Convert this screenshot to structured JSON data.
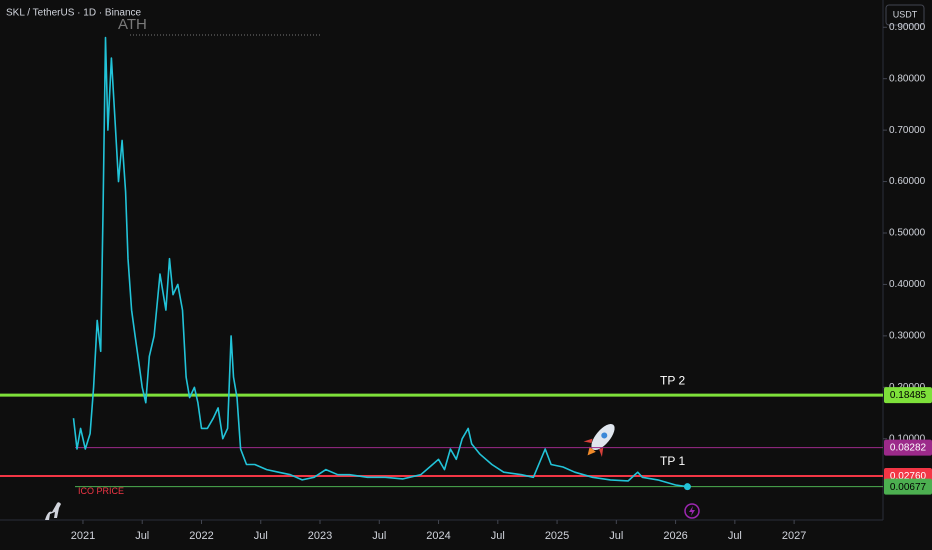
{
  "chart_data": {
    "type": "line",
    "title": "SKL / TetherUS · 1D · Binance",
    "currency": "USDT",
    "annotation": "ATH",
    "color": "#22c3d8",
    "x": [
      2020.92,
      2020.95,
      2020.98,
      2021.02,
      2021.06,
      2021.09,
      2021.12,
      2021.15,
      2021.17,
      2021.19,
      2021.21,
      2021.24,
      2021.27,
      2021.3,
      2021.33,
      2021.36,
      2021.38,
      2021.41,
      2021.44,
      2021.47,
      2021.5,
      2021.53,
      2021.56,
      2021.6,
      2021.65,
      2021.7,
      2021.73,
      2021.76,
      2021.8,
      2021.84,
      2021.87,
      2021.9,
      2021.94,
      2021.97,
      2022.0,
      2022.05,
      2022.1,
      2022.14,
      2022.18,
      2022.22,
      2022.25,
      2022.27,
      2022.3,
      2022.33,
      2022.38,
      2022.45,
      2022.55,
      2022.65,
      2022.75,
      2022.85,
      2022.95,
      2023.05,
      2023.15,
      2023.25,
      2023.4,
      2023.55,
      2023.7,
      2023.85,
      2023.95,
      2024.0,
      2024.05,
      2024.1,
      2024.15,
      2024.2,
      2024.25,
      2024.28,
      2024.35,
      2024.45,
      2024.55,
      2024.7,
      2024.8,
      2024.9,
      2024.95,
      2025.05,
      2025.15,
      2025.3,
      2025.45,
      2025.6,
      2025.68,
      2025.72,
      2025.85,
      2026.0,
      2026.1
    ],
    "values": [
      0.14,
      0.08,
      0.12,
      0.08,
      0.11,
      0.2,
      0.33,
      0.27,
      0.55,
      0.88,
      0.7,
      0.84,
      0.72,
      0.6,
      0.68,
      0.58,
      0.45,
      0.35,
      0.3,
      0.25,
      0.2,
      0.17,
      0.26,
      0.3,
      0.42,
      0.35,
      0.45,
      0.38,
      0.4,
      0.35,
      0.22,
      0.18,
      0.2,
      0.17,
      0.12,
      0.12,
      0.14,
      0.16,
      0.1,
      0.12,
      0.3,
      0.22,
      0.18,
      0.08,
      0.05,
      0.05,
      0.04,
      0.035,
      0.03,
      0.02,
      0.025,
      0.04,
      0.03,
      0.03,
      0.025,
      0.025,
      0.022,
      0.03,
      0.05,
      0.06,
      0.04,
      0.08,
      0.06,
      0.1,
      0.12,
      0.09,
      0.07,
      0.05,
      0.035,
      0.03,
      0.025,
      0.08,
      0.05,
      0.045,
      0.035,
      0.025,
      0.02,
      0.018,
      0.035,
      0.025,
      0.02,
      0.01,
      0.00677
    ],
    "xlim": [
      2020.3,
      2027.75
    ],
    "ylim": [
      -0.058,
      0.953
    ],
    "xticks": [
      2021,
      {
        "value": 2021.5,
        "label": "Jul"
      },
      2022,
      {
        "value": 2022.5,
        "label": "Jul"
      },
      2023,
      {
        "value": 2023.5,
        "label": "Jul"
      },
      2024,
      {
        "value": 2024.5,
        "label": "Jul"
      },
      2025,
      {
        "value": 2025.5,
        "label": "Jul"
      },
      2026,
      {
        "value": 2026.5,
        "label": "Jul"
      },
      2027
    ],
    "yticks": [
      {
        "value": 0.1,
        "label": "0.10000"
      },
      {
        "value": 0.2,
        "label": "0.20000"
      },
      {
        "value": 0.3,
        "label": "0.30000"
      },
      {
        "value": 0.4,
        "label": "0.40000"
      },
      {
        "value": 0.5,
        "label": "0.50000"
      },
      {
        "value": 0.6,
        "label": "0.60000"
      },
      {
        "value": 0.7,
        "label": "0.70000"
      },
      {
        "value": 0.8,
        "label": "0.80000"
      },
      {
        "value": 0.9,
        "label": "0.90000"
      }
    ],
    "grid": false,
    "levels": [
      {
        "name": "TP 2",
        "value": 0.18485,
        "label": "0.18485",
        "color": "#7ee03a"
      },
      {
        "value": 0.08282,
        "label": "0.08282",
        "color": "#9c2a8a"
      },
      {
        "name": "TP 1",
        "value": 0.0276,
        "label": "0.02760",
        "color": "#f23645"
      },
      {
        "name": "ICO PRICE",
        "value": 0.00677,
        "label": "0.00677",
        "color": "#4caf50"
      }
    ]
  }
}
